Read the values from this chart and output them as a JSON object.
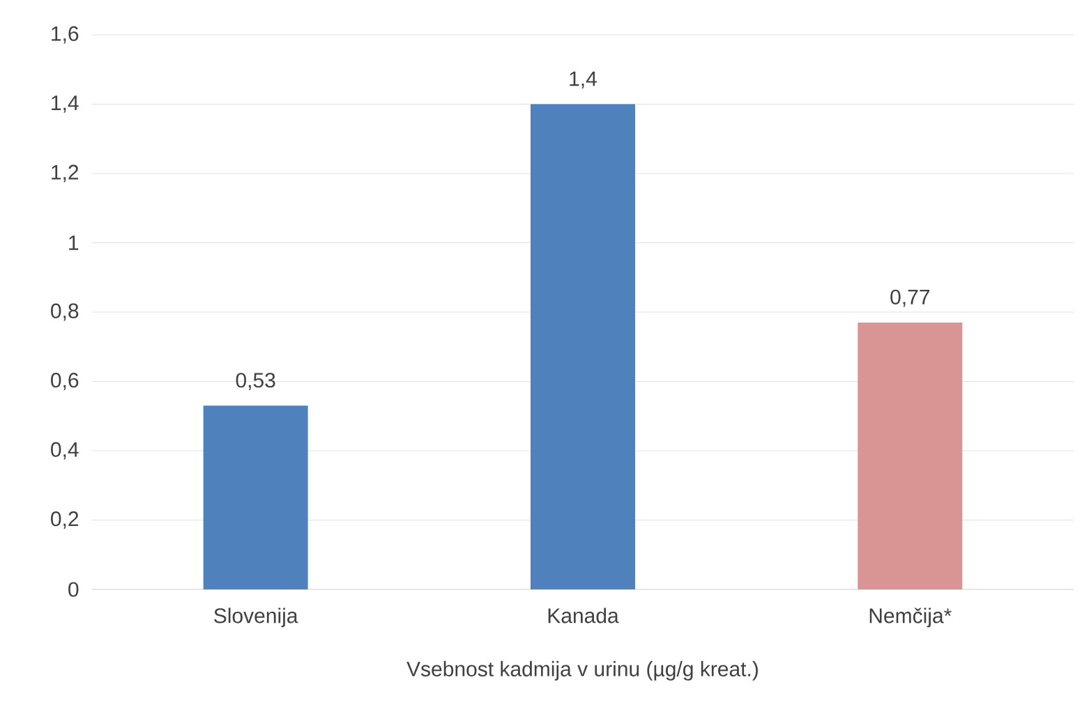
{
  "chart_data": {
    "type": "bar",
    "xlabel": "Vsebnost kadmija v urinu (µg/g kreat.)",
    "categories": [
      "Slovenija",
      "Kanada",
      "Nemčija*"
    ],
    "values": [
      0.53,
      1.4,
      0.77
    ],
    "value_labels": [
      "0,53",
      "1,4",
      "0,77"
    ],
    "colors": [
      "#4f81bd",
      "#4f81bd",
      "#d99594"
    ],
    "ylim": [
      0,
      1.6
    ],
    "yticks": [
      0,
      {
        "value": 0.2,
        "label": "0,2"
      },
      {
        "value": 0.4,
        "label": "0,4"
      },
      {
        "value": 0.6,
        "label": "0,6"
      },
      {
        "value": 0.8,
        "label": "0,8"
      },
      1,
      {
        "value": 1.2,
        "label": "1,2"
      },
      {
        "value": 1.4,
        "label": "1,4"
      },
      {
        "value": 1.6,
        "label": "1,6"
      }
    ],
    "grid": "y"
  }
}
